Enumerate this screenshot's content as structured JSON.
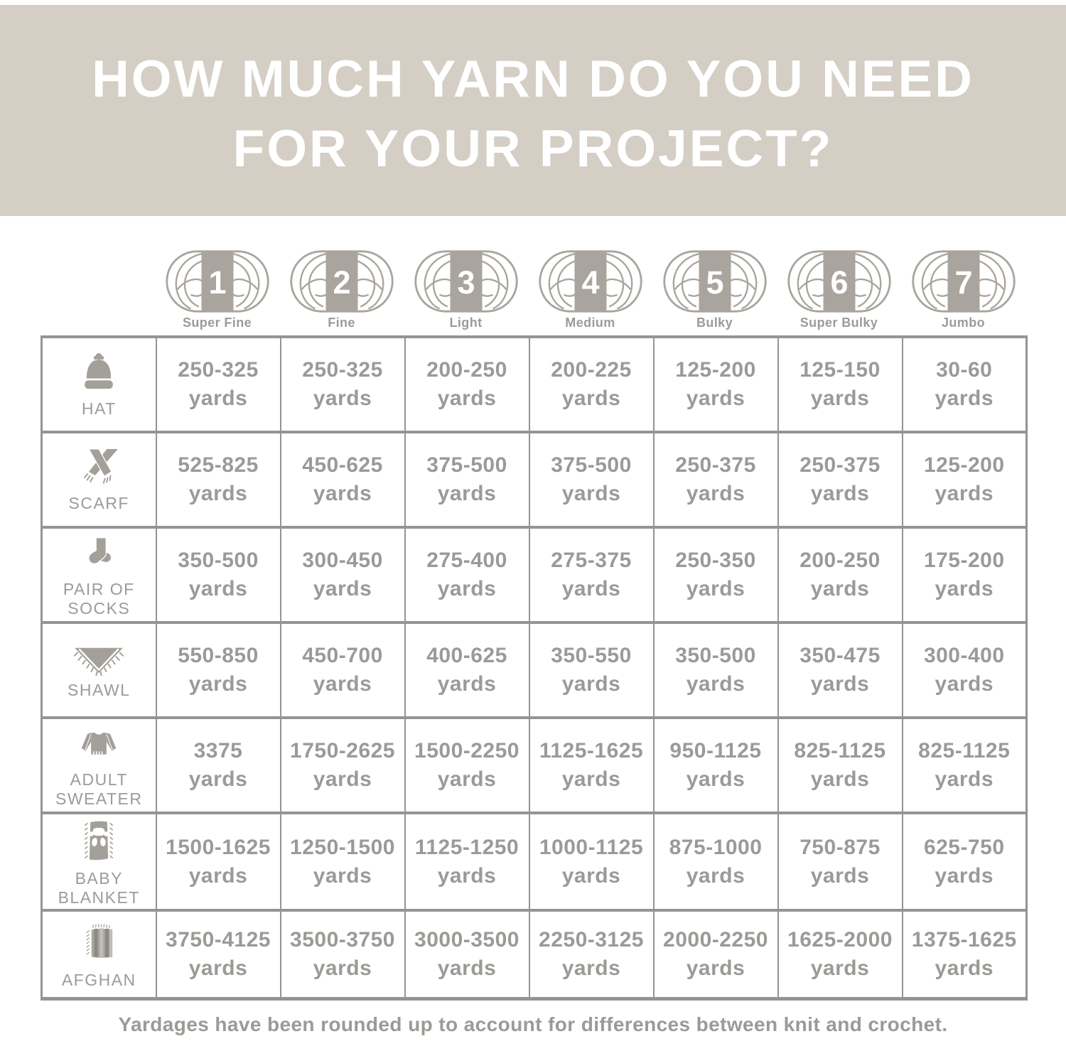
{
  "header": {
    "title_line1": "HOW MUCH YARN DO YOU NEED",
    "title_line2": "FOR YOUR PROJECT?"
  },
  "footnote": "Yardages have been rounded up to account for differences between knit and crochet.",
  "colors": {
    "banner_bg": "#d4cec5",
    "text_gray": "#9b9a96",
    "label_gray": "#9b9b98",
    "icon_gray": "#a3a099",
    "border_gray": "#949494",
    "skein_band": "#a9a59e",
    "stripe_dark": "#8d8983",
    "stripe_light": "#c1bdb6",
    "white": "#ffffff"
  },
  "yarn_weights": [
    {
      "number": "1",
      "label": "Super Fine"
    },
    {
      "number": "2",
      "label": "Fine"
    },
    {
      "number": "3",
      "label": "Light"
    },
    {
      "number": "4",
      "label": "Medium"
    },
    {
      "number": "5",
      "label": "Bulky"
    },
    {
      "number": "6",
      "label": "Super Bulky"
    },
    {
      "number": "7",
      "label": "Jumbo"
    }
  ],
  "projects": [
    {
      "label_lines": [
        "HAT"
      ],
      "icon": "hat-icon"
    },
    {
      "label_lines": [
        "SCARF"
      ],
      "icon": "scarf-icon"
    },
    {
      "label_lines": [
        "PAIR OF",
        "SOCKS"
      ],
      "icon": "socks-icon"
    },
    {
      "label_lines": [
        "SHAWL"
      ],
      "icon": "shawl-icon"
    },
    {
      "label_lines": [
        "ADULT",
        "SWEATER"
      ],
      "icon": "sweater-icon"
    },
    {
      "label_lines": [
        "BABY",
        "BLANKET"
      ],
      "icon": "baby-blanket-icon"
    },
    {
      "label_lines": [
        "AFGHAN"
      ],
      "icon": "afghan-icon"
    }
  ],
  "chart_data": {
    "type": "table",
    "title": "HOW MUCH YARN DO YOU NEED FOR YOUR PROJECT?",
    "unit": "yards",
    "columns": [
      "Super Fine (1)",
      "Fine (2)",
      "Light (3)",
      "Medium (4)",
      "Bulky (5)",
      "Super Bulky (6)",
      "Jumbo (7)"
    ],
    "rows": [
      {
        "project": "Hat",
        "values": [
          "250-325",
          "250-325",
          "200-250",
          "200-225",
          "125-200",
          "125-150",
          "30-60"
        ]
      },
      {
        "project": "Scarf",
        "values": [
          "525-825",
          "450-625",
          "375-500",
          "375-500",
          "250-375",
          "250-375",
          "125-200"
        ]
      },
      {
        "project": "Pair of Socks",
        "values": [
          "350-500",
          "300-450",
          "275-400",
          "275-375",
          "250-350",
          "200-250",
          "175-200"
        ]
      },
      {
        "project": "Shawl",
        "values": [
          "550-850",
          "450-700",
          "400-625",
          "350-550",
          "350-500",
          "350-475",
          "300-400"
        ]
      },
      {
        "project": "Adult Sweater",
        "values": [
          "3375",
          "1750-2625",
          "1500-2250",
          "1125-1625",
          "950-1125",
          "825-1125",
          "825-1125"
        ]
      },
      {
        "project": "Baby Blanket",
        "values": [
          "1500-1625",
          "1250-1500",
          "1125-1250",
          "1000-1125",
          "875-1000",
          "750-875",
          "625-750"
        ]
      },
      {
        "project": "Afghan",
        "values": [
          "3750-4125",
          "3500-3750",
          "3000-3500",
          "2250-3125",
          "2000-2250",
          "1625-2000",
          "1375-1625"
        ]
      }
    ],
    "footnote": "Yardages have been rounded up to account for differences between knit and crochet."
  }
}
